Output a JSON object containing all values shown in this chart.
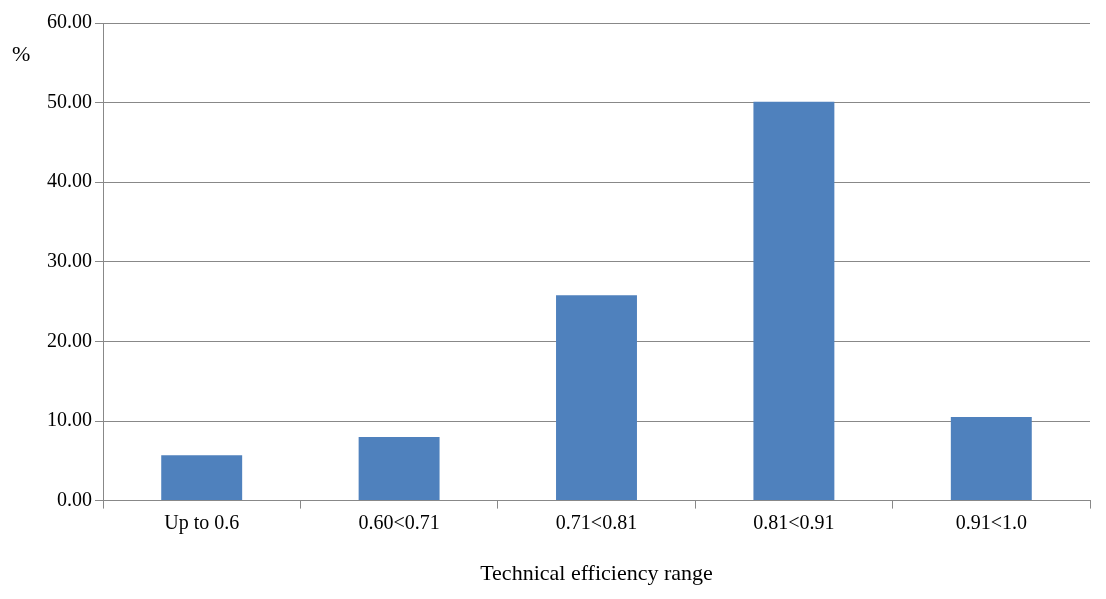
{
  "chart_data": {
    "type": "bar",
    "xlabel": "Technical efficiency range",
    "ylabel": "%",
    "categories": [
      "Up to 0.6",
      "0.60<0.71",
      "0.71<0.81",
      "0.81<0.91",
      "0.91<1.0"
    ],
    "values": [
      5.7,
      8.0,
      25.8,
      50.1,
      10.5
    ],
    "color": "#4f81bd",
    "ylim": [
      0,
      60
    ],
    "yticks": [
      {
        "value": 0,
        "label": "0.00"
      },
      {
        "value": 10,
        "label": "10.00"
      },
      {
        "value": 20,
        "label": "20.00"
      },
      {
        "value": 30,
        "label": "30.00"
      },
      {
        "value": 40,
        "label": "40.00"
      },
      {
        "value": 50,
        "label": "50.00"
      },
      {
        "value": 60,
        "label": "60.00"
      }
    ],
    "grid": "y",
    "legend": false
  }
}
